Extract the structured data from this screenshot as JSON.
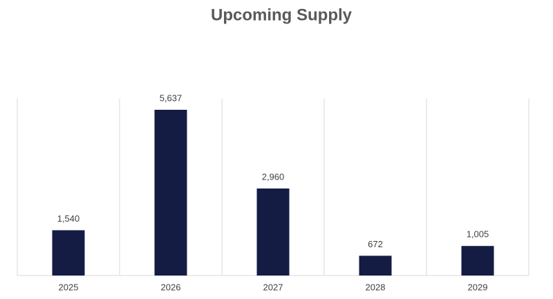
{
  "chart_data": {
    "type": "bar",
    "title": "Upcoming Supply",
    "categories": [
      "2025",
      "2026",
      "2027",
      "2028",
      "2029"
    ],
    "values": [
      1540,
      5637,
      2960,
      672,
      1005
    ],
    "value_labels": [
      "1,540",
      "5,637",
      "2,960",
      "672",
      "1,005"
    ],
    "color": "#141c44"
  }
}
